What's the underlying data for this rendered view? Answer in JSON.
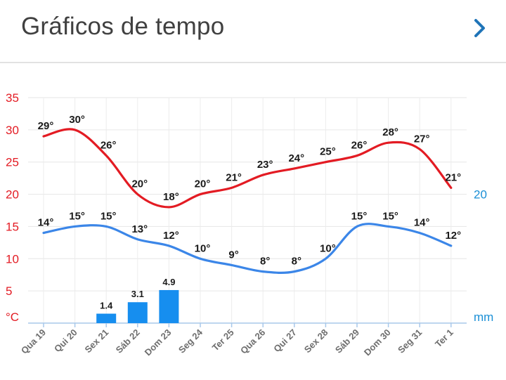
{
  "header": {
    "title": "Gráficos de tempo",
    "next_icon": "chevron-right-icon"
  },
  "colors": {
    "max": "#e31b23",
    "min": "#3b86e8",
    "bar": "#168eef",
    "precip_axis": "#1a8fd6"
  },
  "chart_data": {
    "type": "line",
    "categories": [
      "Qua 19",
      "Qui 20",
      "Sex 21",
      "Sáb 22",
      "Dom 23",
      "Seg 24",
      "Ter 25",
      "Qua 26",
      "Qui 27",
      "Sex 28",
      "Sáb 29",
      "Dom 30",
      "Seg 31",
      "Ter 1"
    ],
    "series": [
      {
        "values": [
          29,
          30,
          26,
          20,
          18,
          20,
          21,
          23,
          24,
          25,
          26,
          28,
          27,
          21
        ],
        "labels": [
          "29°",
          "30°",
          "26°",
          "20°",
          "18°",
          "20°",
          "21°",
          "23°",
          "24°",
          "25°",
          "26°",
          "28°",
          "27°",
          "21°"
        ]
      },
      {
        "values": [
          14,
          15,
          15,
          13,
          12,
          10,
          9,
          8,
          8,
          10,
          15,
          15,
          14,
          12
        ],
        "labels": [
          "14°",
          "15°",
          "15°",
          "13°",
          "12°",
          "10°",
          "9°",
          "8°",
          "8°",
          "10°",
          "15°",
          "15°",
          "14°",
          "12°"
        ]
      }
    ],
    "precip": {
      "values": [
        null,
        null,
        1.4,
        3.1,
        4.9,
        null,
        null,
        null,
        null,
        null,
        null,
        null,
        null,
        null
      ],
      "labels": [
        "",
        "",
        "1.4",
        "3.1",
        "4.9",
        "",
        "",
        "",
        "",
        "",
        "",
        "",
        "",
        ""
      ]
    },
    "y_left": {
      "ticks": [
        "35",
        "30",
        "25",
        "20",
        "15",
        "10",
        "5"
      ],
      "values": [
        35,
        30,
        25,
        20,
        15,
        10,
        5
      ],
      "unit": "°C",
      "range": [
        0,
        35
      ]
    },
    "y_right": {
      "tick": "20",
      "tick_value": 20,
      "unit": "mm",
      "range": [
        0,
        35
      ]
    }
  }
}
